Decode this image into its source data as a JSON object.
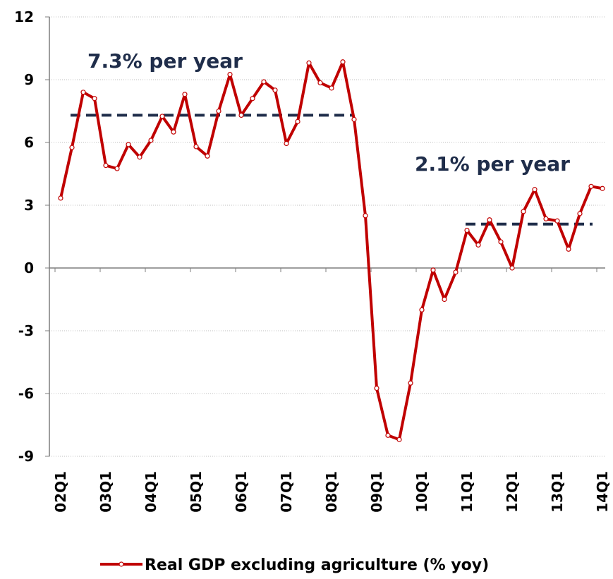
{
  "chart_data": {
    "type": "line",
    "categories": [
      "02Q1",
      null,
      null,
      null,
      "03Q1",
      null,
      null,
      null,
      "04Q1",
      null,
      null,
      null,
      "05Q1",
      null,
      null,
      null,
      "06Q1",
      null,
      null,
      null,
      "07Q1",
      null,
      null,
      null,
      "08Q1",
      null,
      null,
      null,
      "09Q1",
      null,
      null,
      null,
      "10Q1",
      null,
      null,
      null,
      "11Q1",
      null,
      null,
      null,
      "12Q1",
      null,
      null,
      null,
      "13Q1",
      null,
      null,
      null,
      "14Q1"
    ],
    "series": [
      {
        "name": "Real GDP excluding agriculture (% yoy)",
        "color": "#c00000",
        "values": [
          3.34,
          5.76,
          8.4,
          8.1,
          4.9,
          4.75,
          5.9,
          5.3,
          6.1,
          7.25,
          6.5,
          8.3,
          5.8,
          5.35,
          7.5,
          9.25,
          7.3,
          8.1,
          8.9,
          8.5,
          5.95,
          7.0,
          9.8,
          8.85,
          8.6,
          9.85,
          7.1,
          2.5,
          -5.75,
          -8.0,
          -8.2,
          -5.5,
          -2.0,
          -0.1,
          -1.5,
          -0.2,
          1.8,
          1.1,
          2.3,
          1.25,
          0.0,
          2.7,
          3.75,
          2.35,
          2.25,
          0.9,
          2.6,
          3.9,
          3.8
        ]
      }
    ],
    "averages": [
      {
        "label": "7.3% per year",
        "value": 7.3,
        "color": "#1f2d4a"
      },
      {
        "label": "2.1% per year",
        "value": 2.1,
        "color": "#1f2d4a"
      }
    ],
    "ylim": [
      -9,
      12
    ],
    "yticks": [
      -9,
      -6,
      -3,
      0,
      3,
      6,
      9,
      12
    ],
    "grid": true
  }
}
